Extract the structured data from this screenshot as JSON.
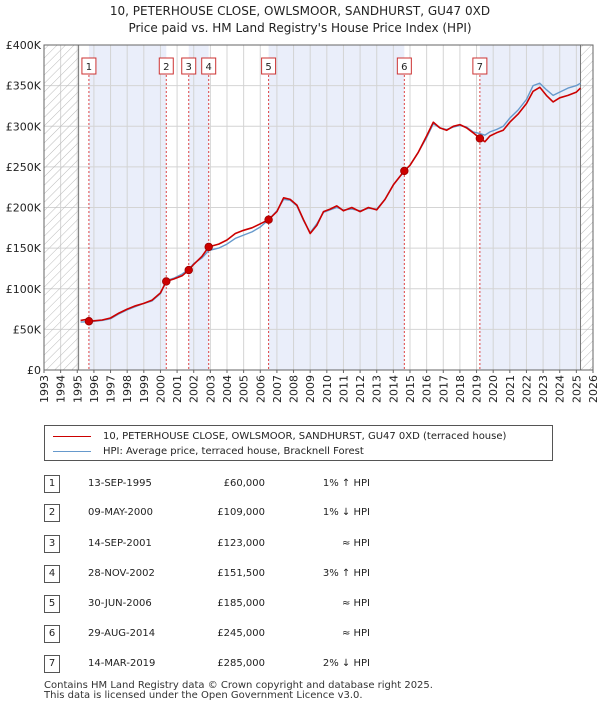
{
  "chart_data": {
    "type": "line",
    "title": "10, PETERHOUSE CLOSE, OWLSMOOR, SANDHURST, GU47 0XD",
    "subtitle": "Price paid vs. HM Land Registry's House Price Index (HPI)",
    "xlim": [
      1993,
      2026
    ],
    "ylim": [
      0,
      400000
    ],
    "x_ticks": [
      "1993",
      "1994",
      "1995",
      "1996",
      "1997",
      "1998",
      "1999",
      "2000",
      "2001",
      "2002",
      "2003",
      "2004",
      "2005",
      "2006",
      "2007",
      "2008",
      "2009",
      "2010",
      "2011",
      "2012",
      "2013",
      "2014",
      "2015",
      "2016",
      "2017",
      "2018",
      "2019",
      "2020",
      "2021",
      "2022",
      "2023",
      "2024",
      "2025",
      "2026"
    ],
    "y_ticks": [
      {
        "value": 0,
        "label": "£0"
      },
      {
        "value": 50000,
        "label": "£50K"
      },
      {
        "value": 100000,
        "label": "£100K"
      },
      {
        "value": 150000,
        "label": "£150K"
      },
      {
        "value": 200000,
        "label": "£200K"
      },
      {
        "value": 250000,
        "label": "£250K"
      },
      {
        "value": 300000,
        "label": "£300K"
      },
      {
        "value": 350000,
        "label": "£350K"
      },
      {
        "value": 400000,
        "label": "£400K"
      }
    ],
    "hatched_ranges": [
      [
        1993,
        1995.08
      ],
      [
        2025.25,
        2026
      ]
    ],
    "band_ranges": [
      [
        1995.7,
        2000.35
      ],
      [
        2001.7,
        2002.9
      ],
      [
        2006.5,
        2014.66
      ],
      [
        2019.2,
        2025.25
      ]
    ],
    "series": [
      {
        "name": "10, PETERHOUSE CLOSE, OWLSMOOR, SANDHURST, GU47 0XD (terraced house)",
        "color": "#cc0000",
        "points": [
          [
            1995.2,
            61000
          ],
          [
            1995.5,
            62000
          ],
          [
            1995.7,
            60000
          ],
          [
            1996.0,
            60500
          ],
          [
            1996.5,
            61500
          ],
          [
            1997.0,
            64000
          ],
          [
            1997.5,
            70000
          ],
          [
            1998.0,
            75000
          ],
          [
            1998.5,
            79000
          ],
          [
            1999.0,
            82000
          ],
          [
            1999.5,
            86000
          ],
          [
            2000.0,
            95000
          ],
          [
            2000.35,
            109000
          ],
          [
            2000.8,
            112000
          ],
          [
            2001.3,
            116000
          ],
          [
            2001.7,
            123000
          ],
          [
            2002.0,
            130000
          ],
          [
            2002.5,
            140000
          ],
          [
            2002.9,
            151500
          ],
          [
            2003.5,
            155000
          ],
          [
            2004.0,
            160000
          ],
          [
            2004.5,
            168000
          ],
          [
            2005.0,
            172000
          ],
          [
            2005.5,
            175000
          ],
          [
            2006.0,
            180000
          ],
          [
            2006.5,
            185000
          ],
          [
            2007.0,
            195000
          ],
          [
            2007.4,
            212000
          ],
          [
            2007.8,
            210000
          ],
          [
            2008.2,
            203000
          ],
          [
            2008.6,
            185000
          ],
          [
            2009.0,
            168000
          ],
          [
            2009.4,
            178000
          ],
          [
            2009.8,
            195000
          ],
          [
            2010.2,
            198000
          ],
          [
            2010.6,
            202000
          ],
          [
            2011.0,
            196000
          ],
          [
            2011.5,
            200000
          ],
          [
            2012.0,
            195000
          ],
          [
            2012.5,
            200000
          ],
          [
            2013.0,
            197000
          ],
          [
            2013.5,
            210000
          ],
          [
            2014.0,
            228000
          ],
          [
            2014.66,
            245000
          ],
          [
            2015.0,
            252000
          ],
          [
            2015.5,
            268000
          ],
          [
            2016.0,
            288000
          ],
          [
            2016.4,
            305000
          ],
          [
            2016.8,
            298000
          ],
          [
            2017.2,
            295000
          ],
          [
            2017.6,
            300000
          ],
          [
            2018.0,
            302000
          ],
          [
            2018.4,
            298000
          ],
          [
            2018.8,
            292000
          ],
          [
            2019.2,
            285000
          ],
          [
            2019.5,
            281000
          ],
          [
            2019.8,
            288000
          ],
          [
            2020.2,
            292000
          ],
          [
            2020.6,
            295000
          ],
          [
            2021.0,
            305000
          ],
          [
            2021.5,
            315000
          ],
          [
            2022.0,
            328000
          ],
          [
            2022.4,
            343000
          ],
          [
            2022.8,
            348000
          ],
          [
            2023.2,
            338000
          ],
          [
            2023.6,
            330000
          ],
          [
            2024.0,
            335000
          ],
          [
            2024.5,
            338000
          ],
          [
            2025.0,
            342000
          ],
          [
            2025.25,
            347000
          ]
        ]
      },
      {
        "name": "HPI: Average price, terraced house, Bracknell Forest",
        "color": "#6699cc",
        "points": [
          [
            1995.2,
            59000
          ],
          [
            1995.7,
            59500
          ],
          [
            1996.0,
            60000
          ],
          [
            1996.5,
            61000
          ],
          [
            1997.0,
            63000
          ],
          [
            1997.5,
            69000
          ],
          [
            1998.0,
            74000
          ],
          [
            1998.5,
            78000
          ],
          [
            1999.0,
            82000
          ],
          [
            1999.5,
            85000
          ],
          [
            2000.0,
            94000
          ],
          [
            2000.35,
            110000
          ],
          [
            2000.8,
            113000
          ],
          [
            2001.3,
            118000
          ],
          [
            2001.7,
            124000
          ],
          [
            2002.0,
            131000
          ],
          [
            2002.5,
            138000
          ],
          [
            2002.9,
            147000
          ],
          [
            2003.5,
            150000
          ],
          [
            2004.0,
            155000
          ],
          [
            2004.5,
            162000
          ],
          [
            2005.0,
            166000
          ],
          [
            2005.5,
            170000
          ],
          [
            2006.0,
            176000
          ],
          [
            2006.5,
            185000
          ],
          [
            2007.0,
            196000
          ],
          [
            2007.4,
            210000
          ],
          [
            2007.8,
            209000
          ],
          [
            2008.2,
            202000
          ],
          [
            2008.6,
            184000
          ],
          [
            2009.0,
            169000
          ],
          [
            2009.4,
            180000
          ],
          [
            2009.8,
            194000
          ],
          [
            2010.2,
            197000
          ],
          [
            2010.6,
            200000
          ],
          [
            2011.0,
            197000
          ],
          [
            2011.5,
            198000
          ],
          [
            2012.0,
            196000
          ],
          [
            2012.5,
            199000
          ],
          [
            2013.0,
            198000
          ],
          [
            2013.5,
            210000
          ],
          [
            2014.0,
            228000
          ],
          [
            2014.66,
            245000
          ],
          [
            2015.0,
            252000
          ],
          [
            2015.5,
            268000
          ],
          [
            2016.0,
            286000
          ],
          [
            2016.4,
            303000
          ],
          [
            2016.8,
            298000
          ],
          [
            2017.2,
            296000
          ],
          [
            2017.6,
            299000
          ],
          [
            2018.0,
            301000
          ],
          [
            2018.4,
            299000
          ],
          [
            2018.8,
            293000
          ],
          [
            2019.2,
            291000
          ],
          [
            2019.5,
            289000
          ],
          [
            2019.8,
            293000
          ],
          [
            2020.2,
            296000
          ],
          [
            2020.6,
            300000
          ],
          [
            2021.0,
            310000
          ],
          [
            2021.5,
            320000
          ],
          [
            2022.0,
            333000
          ],
          [
            2022.4,
            350000
          ],
          [
            2022.8,
            353000
          ],
          [
            2023.2,
            345000
          ],
          [
            2023.6,
            338000
          ],
          [
            2024.0,
            342000
          ],
          [
            2024.5,
            347000
          ],
          [
            2025.0,
            350000
          ],
          [
            2025.25,
            353000
          ]
        ]
      }
    ],
    "sales": [
      {
        "n": "1",
        "x": 1995.7,
        "price": 60000
      },
      {
        "n": "2",
        "x": 2000.35,
        "price": 109000
      },
      {
        "n": "3",
        "x": 2001.7,
        "price": 123000
      },
      {
        "n": "4",
        "x": 2002.9,
        "price": 151500
      },
      {
        "n": "5",
        "x": 2006.5,
        "price": 185000
      },
      {
        "n": "6",
        "x": 2014.66,
        "price": 245000
      },
      {
        "n": "7",
        "x": 2019.2,
        "price": 285000
      }
    ]
  },
  "legend": {
    "property_label": "10, PETERHOUSE CLOSE, OWLSMOOR, SANDHURST, GU47 0XD (terraced house)",
    "hpi_label": "HPI: Average price, terraced house, Bracknell Forest",
    "property_color": "#cc0000",
    "hpi_color": "#6699cc"
  },
  "table": [
    {
      "n": "1",
      "date": "13-SEP-1995",
      "price": "£60,000",
      "hpi": "1% ↑ HPI"
    },
    {
      "n": "2",
      "date": "09-MAY-2000",
      "price": "£109,000",
      "hpi": "1% ↓ HPI"
    },
    {
      "n": "3",
      "date": "14-SEP-2001",
      "price": "£123,000",
      "hpi": "≈ HPI"
    },
    {
      "n": "4",
      "date": "28-NOV-2002",
      "price": "£151,500",
      "hpi": "3% ↑ HPI"
    },
    {
      "n": "5",
      "date": "30-JUN-2006",
      "price": "£185,000",
      "hpi": "≈ HPI"
    },
    {
      "n": "6",
      "date": "29-AUG-2014",
      "price": "£245,000",
      "hpi": "≈ HPI"
    },
    {
      "n": "7",
      "date": "14-MAR-2019",
      "price": "£285,000",
      "hpi": "2% ↓ HPI"
    }
  ],
  "footer": {
    "line1": "Contains HM Land Registry data © Crown copyright and database right 2025.",
    "line2": "This data is licensed under the Open Government Licence v3.0."
  }
}
